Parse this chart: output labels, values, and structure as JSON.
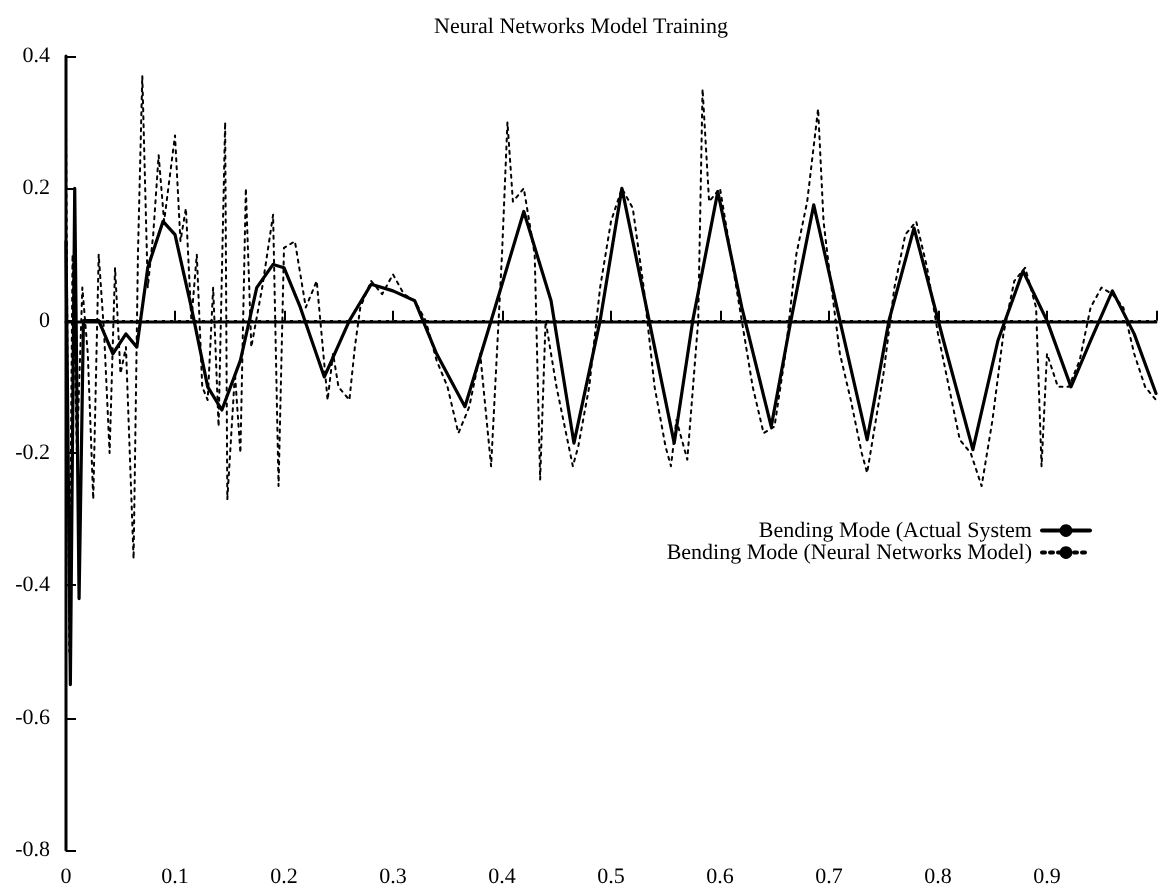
{
  "chart_data": {
    "type": "line",
    "title": "Neural Networks Model Training",
    "xlim": [
      0,
      1
    ],
    "xticks": [
      0,
      0.1,
      0.2,
      0.3,
      0.4,
      0.5,
      0.6,
      0.7,
      0.8,
      0.9,
      {
        "value": 1,
        "label": null
      }
    ],
    "ylim": [
      -0.8,
      0.4
    ],
    "yticks": [
      -0.8,
      -0.6,
      -0.4,
      -0.2,
      0,
      0.2,
      0.4
    ],
    "grid": false,
    "legend": "right",
    "marker": "none",
    "ref_lines": [
      {
        "axis": "y",
        "value": 0,
        "label": null,
        "color": "#000000",
        "line_style": "dotted"
      }
    ],
    "series": [
      {
        "name": "Bending Mode (Actual System",
        "color": "#000000",
        "line_style": "solid",
        "x": [
          0,
          0.004,
          0.008,
          0.012,
          0.016,
          0.03,
          0.043,
          0.055,
          0.065,
          0.075,
          0.089,
          0.1,
          0.115,
          0.13,
          0.143,
          0.16,
          0.175,
          0.19,
          0.2,
          0.215,
          0.237,
          0.26,
          0.28,
          0.3,
          0.32,
          0.34,
          0.366,
          0.39,
          0.42,
          0.445,
          0.466,
          0.49,
          0.51,
          0.535,
          0.558,
          0.575,
          0.598,
          0.62,
          0.647,
          0.665,
          0.686,
          0.71,
          0.735,
          0.755,
          0.778,
          0.805,
          0.832,
          0.855,
          0.878,
          0.9,
          0.922,
          0.94,
          0.96,
          0.98,
          1.0
        ],
        "values": [
          0.12,
          -0.55,
          0.2,
          -0.42,
          0.0,
          0.0,
          -0.05,
          -0.02,
          -0.04,
          0.08,
          0.15,
          0.13,
          0.02,
          -0.1,
          -0.135,
          -0.06,
          0.05,
          0.085,
          0.08,
          0.02,
          -0.085,
          0.0,
          0.055,
          0.045,
          0.03,
          -0.05,
          -0.13,
          0.0,
          0.165,
          0.03,
          -0.185,
          0.0,
          0.2,
          0.0,
          -0.185,
          0.0,
          0.195,
          0.02,
          -0.16,
          0.0,
          0.175,
          0.0,
          -0.18,
          0.0,
          0.14,
          -0.03,
          -0.195,
          -0.03,
          0.075,
          0.0,
          -0.1,
          -0.03,
          0.045,
          -0.02,
          -0.11
        ]
      },
      {
        "name": "Bending Mode (Neural Networks Model)",
        "color": "#000000",
        "line_style": "dotted",
        "x": [
          0,
          0.003,
          0.006,
          0.01,
          0.015,
          0.02,
          0.025,
          0.03,
          0.035,
          0.04,
          0.045,
          0.05,
          0.055,
          0.062,
          0.066,
          0.07,
          0.075,
          0.08,
          0.085,
          0.09,
          0.1,
          0.105,
          0.11,
          0.115,
          0.12,
          0.125,
          0.13,
          0.135,
          0.14,
          0.146,
          0.148,
          0.155,
          0.16,
          0.165,
          0.17,
          0.18,
          0.19,
          0.195,
          0.2,
          0.21,
          0.22,
          0.23,
          0.24,
          0.245,
          0.25,
          0.26,
          0.265,
          0.27,
          0.28,
          0.29,
          0.3,
          0.31,
          0.32,
          0.33,
          0.34,
          0.35,
          0.36,
          0.37,
          0.38,
          0.39,
          0.4,
          0.405,
          0.41,
          0.42,
          0.43,
          0.435,
          0.44,
          0.45,
          0.46,
          0.465,
          0.47,
          0.48,
          0.49,
          0.5,
          0.51,
          0.52,
          0.53,
          0.54,
          0.55,
          0.555,
          0.56,
          0.57,
          0.58,
          0.584,
          0.59,
          0.6,
          0.61,
          0.62,
          0.63,
          0.64,
          0.65,
          0.66,
          0.67,
          0.68,
          0.69,
          0.695,
          0.7,
          0.71,
          0.72,
          0.73,
          0.735,
          0.74,
          0.75,
          0.76,
          0.77,
          0.78,
          0.79,
          0.8,
          0.81,
          0.82,
          0.83,
          0.84,
          0.85,
          0.86,
          0.87,
          0.88,
          0.89,
          0.895,
          0.9,
          0.91,
          0.92,
          0.93,
          0.94,
          0.95,
          0.96,
          0.97,
          0.98,
          0.99,
          1.0
        ],
        "values": [
          0.3,
          -0.5,
          0.1,
          -0.2,
          0.05,
          -0.05,
          -0.27,
          0.1,
          -0.02,
          -0.2,
          0.08,
          -0.08,
          -0.04,
          -0.36,
          0.1,
          0.37,
          0.05,
          0.13,
          0.25,
          0.15,
          0.28,
          0.12,
          0.17,
          0.0,
          0.1,
          -0.1,
          -0.12,
          0.05,
          -0.16,
          0.3,
          -0.27,
          -0.08,
          -0.2,
          0.2,
          -0.04,
          0.05,
          0.16,
          -0.25,
          0.11,
          0.12,
          0.02,
          0.06,
          -0.12,
          -0.05,
          -0.1,
          -0.12,
          -0.04,
          0.02,
          0.06,
          0.04,
          0.07,
          0.04,
          0.03,
          0.0,
          -0.06,
          -0.1,
          -0.17,
          -0.13,
          -0.05,
          -0.22,
          0.1,
          0.3,
          0.18,
          0.2,
          0.1,
          -0.24,
          0.0,
          -0.1,
          -0.18,
          -0.22,
          -0.19,
          -0.1,
          0.05,
          0.15,
          0.2,
          0.17,
          0.05,
          -0.1,
          -0.19,
          -0.22,
          -0.15,
          -0.21,
          0.0,
          0.35,
          0.18,
          0.2,
          0.1,
          0.0,
          -0.1,
          -0.17,
          -0.16,
          -0.05,
          0.1,
          0.18,
          0.32,
          0.15,
          0.08,
          -0.05,
          -0.12,
          -0.2,
          -0.23,
          -0.18,
          -0.08,
          0.05,
          0.13,
          0.15,
          0.08,
          -0.02,
          -0.1,
          -0.18,
          -0.2,
          -0.25,
          -0.15,
          -0.02,
          0.06,
          0.08,
          0.02,
          -0.22,
          -0.05,
          -0.1,
          -0.1,
          -0.06,
          0.02,
          0.05,
          0.04,
          0.02,
          -0.05,
          -0.1,
          -0.12
        ]
      }
    ]
  }
}
